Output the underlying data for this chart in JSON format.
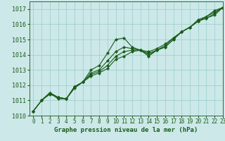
{
  "bg_color": "#cce8e8",
  "grid_color": "#99cccc",
  "line_color": "#1a5c1a",
  "marker_color": "#1a5c1a",
  "xlabel": "Graphe pression niveau de la mer (hPa)",
  "xlim": [
    -0.5,
    23
  ],
  "ylim": [
    1010,
    1017.5
  ],
  "yticks": [
    1010,
    1011,
    1012,
    1013,
    1014,
    1015,
    1016,
    1017
  ],
  "xticks": [
    0,
    1,
    2,
    3,
    4,
    5,
    6,
    7,
    8,
    9,
    10,
    11,
    12,
    13,
    14,
    15,
    16,
    17,
    18,
    19,
    20,
    21,
    22,
    23
  ],
  "series": [
    [
      1010.3,
      1011.0,
      1011.5,
      1011.1,
      1011.1,
      1011.9,
      1012.2,
      1013.0,
      1013.3,
      1014.1,
      1015.0,
      1015.1,
      1014.5,
      1014.3,
      1013.9,
      1014.3,
      1014.5,
      1015.0,
      1015.5,
      1015.8,
      1016.3,
      1016.5,
      1016.9,
      1017.1
    ],
    [
      1010.3,
      1011.0,
      1011.5,
      1011.2,
      1011.1,
      1011.9,
      1012.2,
      1012.8,
      1013.0,
      1013.6,
      1014.2,
      1014.5,
      1014.4,
      1014.3,
      1014.0,
      1014.3,
      1014.5,
      1015.0,
      1015.5,
      1015.8,
      1016.2,
      1016.5,
      1016.8,
      1017.1
    ],
    [
      1010.3,
      1011.0,
      1011.5,
      1011.2,
      1011.1,
      1011.9,
      1012.2,
      1012.7,
      1012.9,
      1013.3,
      1013.9,
      1014.2,
      1014.3,
      1014.3,
      1014.1,
      1014.3,
      1014.6,
      1015.1,
      1015.5,
      1015.8,
      1016.2,
      1016.4,
      1016.7,
      1017.1
    ],
    [
      1010.3,
      1011.0,
      1011.4,
      1011.2,
      1011.1,
      1011.8,
      1012.2,
      1012.6,
      1012.8,
      1013.1,
      1013.7,
      1013.9,
      1014.2,
      1014.3,
      1014.2,
      1014.4,
      1014.7,
      1015.1,
      1015.5,
      1015.8,
      1016.2,
      1016.4,
      1016.6,
      1017.1
    ]
  ],
  "font_size_xlabel": 6.5,
  "font_size_ytick": 6.0,
  "font_size_xtick": 5.5
}
